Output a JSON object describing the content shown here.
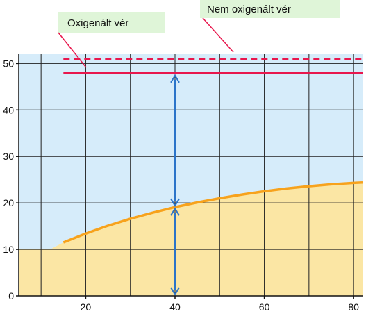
{
  "chart_data": {
    "type": "line",
    "x_ticks": [
      20,
      40,
      60,
      80
    ],
    "y_ticks": [
      0,
      10,
      20,
      30,
      40,
      50
    ],
    "xlim": [
      5,
      82
    ],
    "ylim": [
      0,
      52
    ],
    "grid": true,
    "series": [
      {
        "name": "Oxigenált vér",
        "color": "#e8174d",
        "style": "solid",
        "x": [
          15,
          82
        ],
        "y": [
          48,
          48
        ]
      },
      {
        "name": "Nem oxigenált vér",
        "color": "#e8174d",
        "style": "dashed",
        "x": [
          15,
          82
        ],
        "y": [
          51,
          51
        ]
      },
      {
        "name": "",
        "color": "#f7a21c",
        "style": "solid",
        "x": [
          15,
          20,
          25,
          30,
          35,
          40,
          45,
          50,
          55,
          60,
          65,
          70,
          75,
          80,
          82
        ],
        "y": [
          11.5,
          13.4,
          15.1,
          16.6,
          17.9,
          19.1,
          20.1,
          21.0,
          21.8,
          22.5,
          23.1,
          23.6,
          24.0,
          24.3,
          24.4
        ]
      }
    ],
    "colors": {
      "plot_background": "#d6ecfa",
      "fill_below_curve": "#fbe6a4",
      "grid": "#222222",
      "arrow": "#2b74c9",
      "callout_box": "#dff5d8"
    }
  }
}
